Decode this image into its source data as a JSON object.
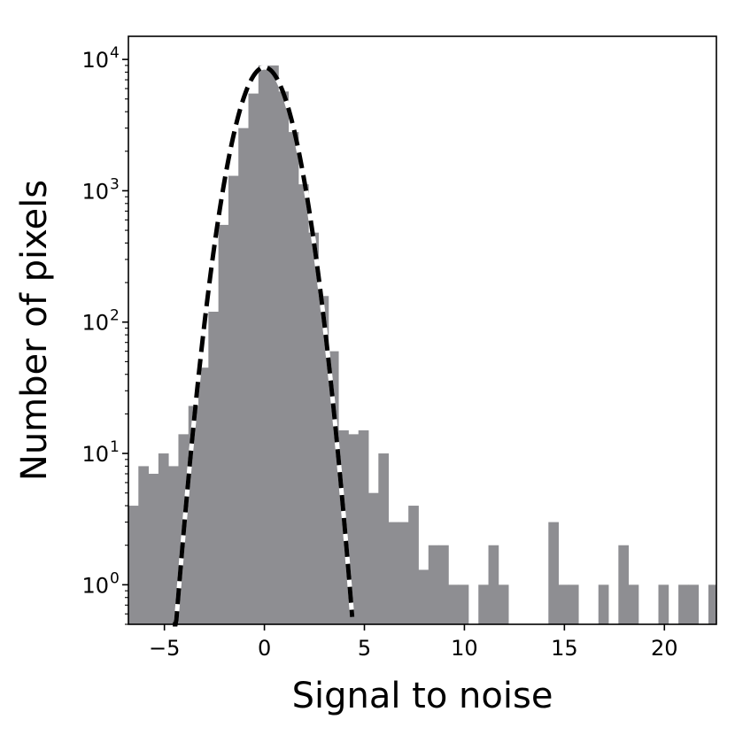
{
  "chart_data": {
    "type": "bar",
    "title": "",
    "xlabel": "Signal to noise",
    "ylabel": "Number of pixels",
    "xlim": [
      -6.8,
      22.6
    ],
    "ylim": [
      0.5,
      15000
    ],
    "yscale": "log",
    "grid": false,
    "bar_color": "#8e8e92",
    "bin_width": 0.5,
    "x_ticks": [
      {
        "value": -5,
        "label": "−5"
      },
      {
        "value": 0,
        "label": "0"
      },
      {
        "value": 5,
        "label": "5"
      },
      {
        "value": 10,
        "label": "10"
      },
      {
        "value": 15,
        "label": "15"
      },
      {
        "value": 20,
        "label": "20"
      }
    ],
    "y_ticks": [
      {
        "value": 1,
        "base": "10",
        "exp": "0"
      },
      {
        "value": 10,
        "base": "10",
        "exp": "1"
      },
      {
        "value": 100,
        "base": "10",
        "exp": "2"
      },
      {
        "value": 1000,
        "base": "10",
        "exp": "3"
      },
      {
        "value": 10000,
        "base": "10",
        "exp": "4"
      }
    ],
    "histogram": {
      "bin_starts": [
        -6.8,
        -6.3,
        -5.8,
        -5.3,
        -4.8,
        -4.3,
        -3.8,
        -3.3,
        -2.8,
        -2.3,
        -1.8,
        -1.3,
        -0.8,
        -0.3,
        0.2,
        0.7,
        1.2,
        1.7,
        2.2,
        2.7,
        3.2,
        3.7,
        4.2,
        4.7,
        5.2,
        5.7,
        6.2,
        6.7,
        7.2,
        7.7,
        8.2,
        8.7,
        9.2,
        9.7,
        10.2,
        10.7,
        11.2,
        11.7,
        12.2,
        12.7,
        13.2,
        13.7,
        14.2,
        14.7,
        15.2,
        15.7,
        16.2,
        16.7,
        17.2,
        17.7,
        18.2,
        18.7,
        19.2,
        19.7,
        20.2,
        20.7,
        21.2,
        21.7,
        22.2
      ],
      "counts": [
        4,
        8,
        7,
        10,
        8,
        14,
        23,
        45,
        120,
        550,
        1300,
        3000,
        5500,
        9000,
        9000,
        5700,
        2800,
        1120,
        480,
        158,
        60,
        15,
        14,
        15,
        5,
        10,
        3,
        3,
        4,
        1.3,
        2,
        2,
        1,
        1,
        0,
        1,
        2,
        1,
        0,
        0,
        0,
        0,
        3,
        1,
        1,
        0,
        0,
        1,
        0,
        2,
        1,
        0,
        0,
        1,
        0,
        1,
        1,
        0,
        1
      ]
    },
    "fit_curve": {
      "type": "gaussian",
      "amplitude": 8700,
      "mean": 0,
      "sigma": 1.0,
      "x_range": [
        -4.58,
        4.39
      ],
      "line_style": "dashed",
      "line_color": "#000000",
      "gap_color": "#ffffff"
    }
  }
}
